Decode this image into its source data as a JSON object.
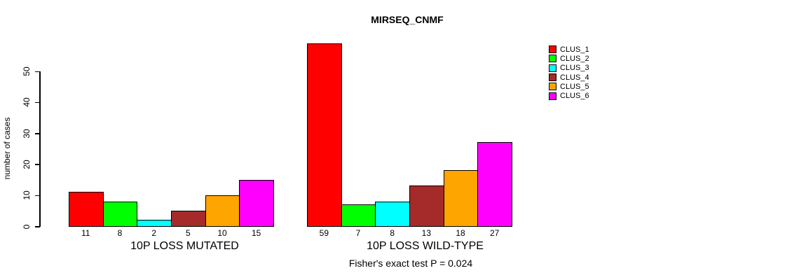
{
  "chart_data": {
    "type": "bar",
    "title": "MIRSEQ_CNMF",
    "ylabel": "number of cases",
    "xlabel": "",
    "yticks": [
      0,
      10,
      20,
      30,
      40,
      50
    ],
    "ylim": [
      0,
      59
    ],
    "grid": false,
    "legend_position": "right-outside",
    "legend": [
      {
        "label": "CLUS_1",
        "color": "#FF0000"
      },
      {
        "label": "CLUS_2",
        "color": "#00FF00"
      },
      {
        "label": "CLUS_3",
        "color": "#00FFFF"
      },
      {
        "label": "CLUS_4",
        "color": "#A52A2A"
      },
      {
        "label": "CLUS_5",
        "color": "#FFA500"
      },
      {
        "label": "CLUS_6",
        "color": "#FF00FF"
      }
    ],
    "series_colors": [
      "#FF0000",
      "#00FF00",
      "#00FFFF",
      "#A52A2A",
      "#FFA500",
      "#FF00FF"
    ],
    "groups": [
      {
        "label": "10P LOSS MUTATED",
        "values": [
          11,
          8,
          2,
          5,
          10,
          15
        ]
      },
      {
        "label": "10P LOSS WILD-TYPE",
        "values": [
          59,
          7,
          8,
          13,
          18,
          27
        ]
      }
    ],
    "bar_value_labels": [
      [
        11,
        8,
        2,
        5,
        10,
        15
      ],
      [
        59,
        7,
        8,
        13,
        18,
        27
      ]
    ],
    "annotation": "Fisher's exact test P = 0.024",
    "axis_color": "#000000",
    "text_color": "#000000",
    "background_color": "#FFFFFF"
  }
}
